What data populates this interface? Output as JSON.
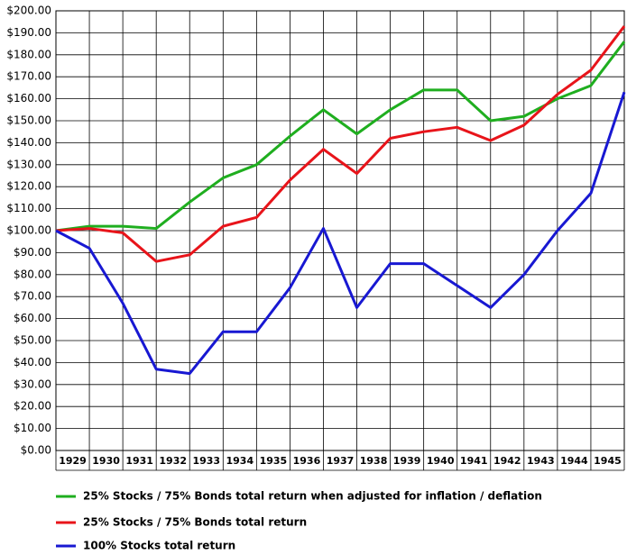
{
  "chart_data": {
    "type": "line",
    "categories": [
      null,
      "1929",
      "1930",
      "1931",
      "1932",
      "1933",
      "1934",
      "1935",
      "1936",
      "1937",
      "1938",
      "1939",
      "1940",
      "1941",
      "1942",
      "1943",
      "1944",
      "1945"
    ],
    "series": [
      {
        "name": "25% Stocks / 75% Bonds total return when adjusted for inflation / deflation",
        "color": "#1fae1f",
        "values": [
          100,
          102,
          102,
          101,
          113,
          124,
          130,
          143,
          155,
          144,
          155,
          164,
          164,
          150,
          152,
          160,
          166,
          186
        ]
      },
      {
        "name": "25% Stocks / 75% Bonds total return",
        "color": "#e8141a",
        "values": [
          100,
          101,
          99,
          86,
          89,
          102,
          106,
          123,
          137,
          126,
          142,
          145,
          147,
          141,
          148,
          162,
          173,
          193
        ]
      },
      {
        "name": "100% Stocks total return",
        "color": "#1818d2",
        "values": [
          100,
          92,
          67,
          37,
          35,
          54,
          54,
          74,
          101,
          65,
          85,
          85,
          75,
          65,
          80,
          100,
          117,
          163
        ]
      }
    ],
    "ylim": [
      0,
      200
    ],
    "yticks": [
      {
        "value": 0,
        "label": "$0.00"
      },
      {
        "value": 10,
        "label": "$10.00"
      },
      {
        "value": 20,
        "label": "$20.00"
      },
      {
        "value": 30,
        "label": "$30.00"
      },
      {
        "value": 40,
        "label": "$40.00"
      },
      {
        "value": 50,
        "label": "$50.00"
      },
      {
        "value": 60,
        "label": "$60.00"
      },
      {
        "value": 70,
        "label": "$70.00"
      },
      {
        "value": 80,
        "label": "$80.00"
      },
      {
        "value": 90,
        "label": "$90.00"
      },
      {
        "value": 100,
        "label": "$100.00"
      },
      {
        "value": 110,
        "label": "$110.00"
      },
      {
        "value": 120,
        "label": "$120.00"
      },
      {
        "value": 130,
        "label": "$130.00"
      },
      {
        "value": 140,
        "label": "$140.00"
      },
      {
        "value": 150,
        "label": "$150.00"
      },
      {
        "value": 160,
        "label": "$160.00"
      },
      {
        "value": 170,
        "label": "$170.00"
      },
      {
        "value": 180,
        "label": "$180.00"
      },
      {
        "value": 190,
        "label": "$190.00"
      },
      {
        "value": 200,
        "label": "$200.00"
      }
    ],
    "grid": true
  }
}
